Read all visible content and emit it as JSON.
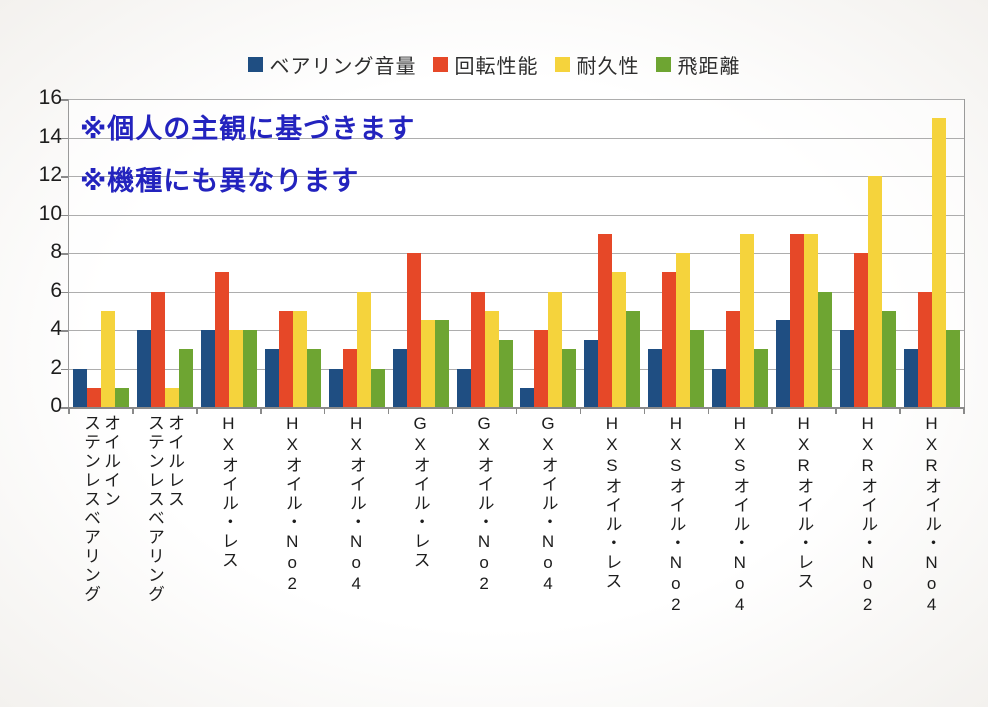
{
  "legend": {
    "items": [
      {
        "label": "ベアリング音量",
        "color": "#1f4e82"
      },
      {
        "label": "回転性能",
        "color": "#e64828"
      },
      {
        "label": "耐久性",
        "color": "#f5d33c"
      },
      {
        "label": "飛距離",
        "color": "#6ea532"
      }
    ]
  },
  "annotations": {
    "line1": "※個人の主観に基づきます",
    "line2": "※機種にも異なります",
    "color": "#2323be"
  },
  "chart_data": {
    "type": "bar",
    "title": "",
    "xlabel": "",
    "ylabel": "",
    "categories": [
      "オイルイン\nステンレスベアリング",
      "オイルレス\nステンレスベアリング",
      "HXオイル・レス",
      "HXオイル・No2",
      "HXオイル・No4",
      "GXオイル・レス",
      "GXオイル・No2",
      "GXオイル・No4",
      "HXSオイル・レス",
      "HXSオイル・No2",
      "HXSオイル・No4",
      "HXRオイル・レス",
      "HXRオイル・No2",
      "HXRオイル・No4"
    ],
    "series": [
      {
        "name": "ベアリング音量",
        "color": "#1f4e82",
        "values": [
          2,
          4,
          4,
          3,
          2,
          3,
          2,
          1,
          3.5,
          3,
          2,
          4.5,
          4,
          3
        ]
      },
      {
        "name": "回転性能",
        "color": "#e64828",
        "values": [
          1,
          6,
          7,
          5,
          3,
          8,
          6,
          4,
          9,
          7,
          5,
          9,
          8,
          6
        ]
      },
      {
        "name": "耐久性",
        "color": "#f5d33c",
        "values": [
          5,
          1,
          4,
          5,
          6,
          4.5,
          5,
          6,
          7,
          8,
          9,
          9,
          12,
          15
        ]
      },
      {
        "name": "飛距離",
        "color": "#6ea532",
        "values": [
          1,
          3,
          4,
          3,
          2,
          4.5,
          3.5,
          3,
          5,
          4,
          3,
          6,
          5,
          4
        ]
      }
    ],
    "ylim": [
      0,
      16
    ],
    "yticks": [
      0,
      2,
      4,
      6,
      8,
      10,
      12,
      14,
      16
    ],
    "grid": "horizontal",
    "legend_position": "top"
  }
}
